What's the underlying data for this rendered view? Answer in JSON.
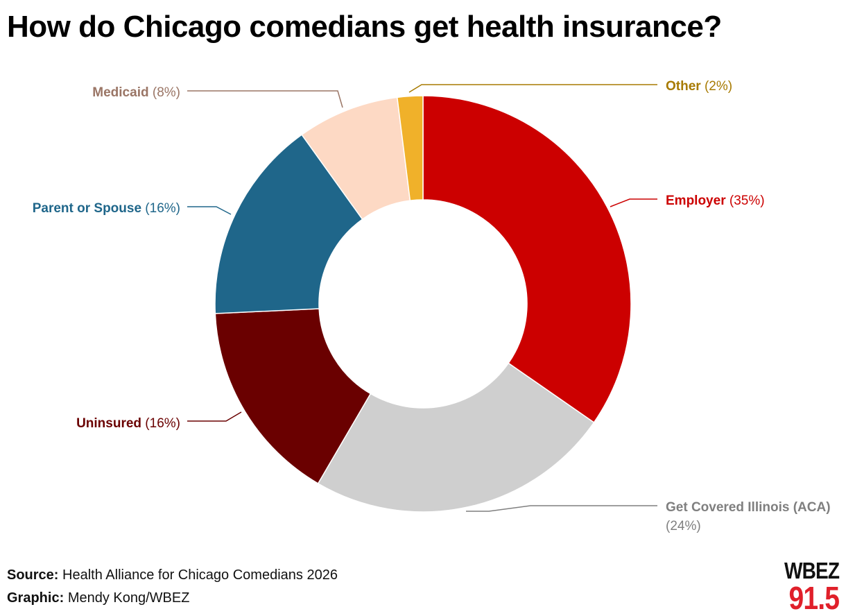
{
  "title": "How do Chicago comedians get health insurance?",
  "footer": {
    "source_label": "Source:",
    "source_text": "Health Alliance for Chicago Comedians 2026",
    "graphic_label": "Graphic:",
    "graphic_text": "Mendy Kong/WBEZ"
  },
  "logo": {
    "top": "WBEZ",
    "bottom": "91.5"
  },
  "chart_data": {
    "type": "pie",
    "donut": true,
    "title": "How do Chicago comedians get health insurance?",
    "slices": [
      {
        "name": "Employer",
        "value": 35,
        "pct_label": "(35%)",
        "color": "#cc0000"
      },
      {
        "name": "Get Covered Illinois (ACA)",
        "value": 24,
        "pct_label": "(24%)",
        "color": "#cfcfcf",
        "label_color": "#7f7f7f"
      },
      {
        "name": "Uninsured",
        "value": 16,
        "pct_label": "(16%)",
        "color": "#6a0000"
      },
      {
        "name": "Parent or Spouse",
        "value": 16,
        "pct_label": "(16%)",
        "color": "#1f668a"
      },
      {
        "name": "Medicaid",
        "value": 8,
        "pct_label": "(8%)",
        "color": "#fdd9c4",
        "label_color": "#9a7565"
      },
      {
        "name": "Other",
        "value": 2,
        "pct_label": "(2%)",
        "color": "#f0b12a",
        "label_color": "#a77a00"
      }
    ]
  }
}
